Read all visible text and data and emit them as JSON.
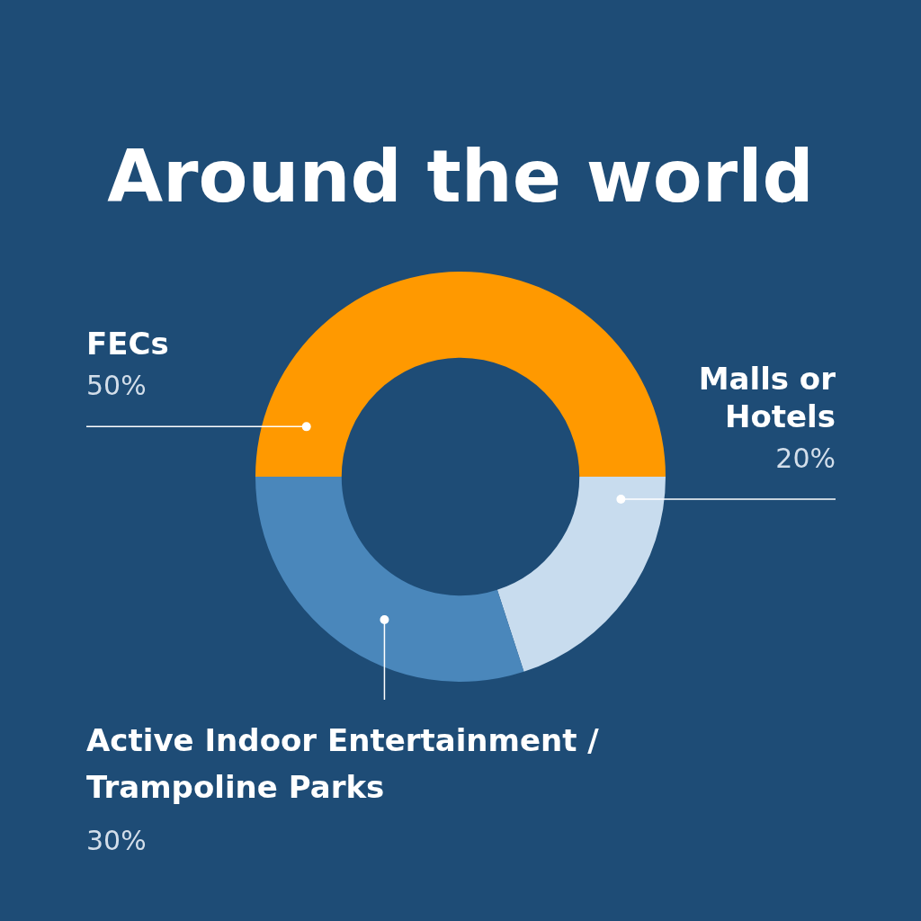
{
  "chart_data": {
    "type": "donut",
    "title": "Around the world",
    "categories": [
      "FECs",
      "Malls or Hotels",
      "Active Indoor Entertainment / Trampoline Parks"
    ],
    "values": [
      50,
      20,
      30
    ],
    "value_labels": [
      "50%",
      "20%",
      "30%"
    ],
    "colors": [
      "#ff9900",
      "#c8dcee",
      "#4a87bb"
    ],
    "legend": false
  }
}
